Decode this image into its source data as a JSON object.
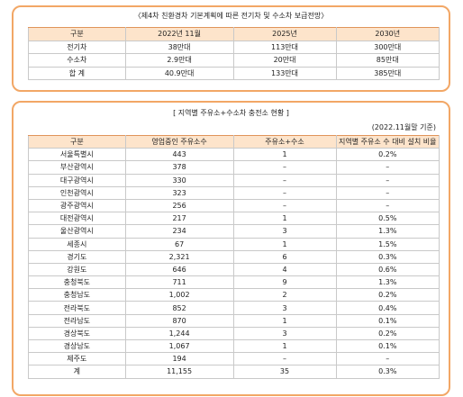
{
  "forecast": {
    "title": "〈제4차 친환경차 기본계획에 따른 전기차 및 수소차 보급전망〉",
    "header": [
      "구분",
      "2022년 11월",
      "2025년",
      "2030년"
    ],
    "rows": [
      [
        "전기차",
        "38만대",
        "113만대",
        "300만대"
      ],
      [
        "수소차",
        "2.9만대",
        "20만대",
        "85만대"
      ],
      [
        "합 계",
        "40.9만대",
        "133만대",
        "385만대"
      ]
    ]
  },
  "stations": {
    "title": "[ 지역별 주유소+수소차 충전소 현황 ]",
    "note": "(2022.11월말 기준)",
    "header": [
      "구분",
      "영업중인 주유소수",
      "주유소+수소",
      "지역별 주유소 수 대비 설치 비율"
    ],
    "rows": [
      [
        "서울특별시",
        "443",
        "1",
        "0.2%"
      ],
      [
        "부산광역시",
        "378",
        "–",
        "–"
      ],
      [
        "대구광역시",
        "330",
        "–",
        "–"
      ],
      [
        "인천광역시",
        "323",
        "–",
        "–"
      ],
      [
        "광주광역시",
        "256",
        "–",
        "–"
      ],
      [
        "대전광역시",
        "217",
        "1",
        "0.5%"
      ],
      [
        "울산광역시",
        "234",
        "3",
        "1.3%"
      ],
      [
        "세종시",
        "67",
        "1",
        "1.5%"
      ],
      [
        "경기도",
        "2,321",
        "6",
        "0.3%"
      ],
      [
        "강원도",
        "646",
        "4",
        "0.6%"
      ],
      [
        "충청북도",
        "711",
        "9",
        "1.3%"
      ],
      [
        "충청남도",
        "1,002",
        "2",
        "0.2%"
      ],
      [
        "전라북도",
        "852",
        "3",
        "0.4%"
      ],
      [
        "전라남도",
        "870",
        "1",
        "0.1%"
      ],
      [
        "경상북도",
        "1,244",
        "3",
        "0.2%"
      ],
      [
        "경상남도",
        "1,067",
        "1",
        "0.1%"
      ],
      [
        "제주도",
        "194",
        "–",
        "–"
      ],
      [
        "계",
        "11,155",
        "35",
        "0.3%"
      ]
    ]
  }
}
